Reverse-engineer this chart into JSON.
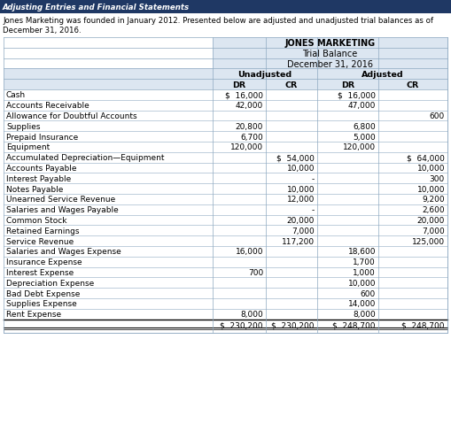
{
  "header_title": "Adjusting Entries and Financial Statements",
  "intro_text": "Jones Marketing was founded in January 2012. Presented below are adjusted and unadjusted trial balances as of December 31, 2016.",
  "company": "JONES MARKETING",
  "report": "Trial Balance",
  "date": "December 31, 2016",
  "rows": [
    {
      "label": "Cash",
      "unadj_dr": "$  16,000",
      "unadj_cr": "",
      "adj_dr": "$  16,000",
      "adj_cr": ""
    },
    {
      "label": "Accounts Receivable",
      "unadj_dr": "42,000",
      "unadj_cr": "",
      "adj_dr": "47,000",
      "adj_cr": ""
    },
    {
      "label": "Allowance for Doubtful Accounts",
      "unadj_dr": "",
      "unadj_cr": "",
      "adj_dr": "",
      "adj_cr": "600"
    },
    {
      "label": "Supplies",
      "unadj_dr": "20,800",
      "unadj_cr": "",
      "adj_dr": "6,800",
      "adj_cr": ""
    },
    {
      "label": "Prepaid Insurance",
      "unadj_dr": "6,700",
      "unadj_cr": "",
      "adj_dr": "5,000",
      "adj_cr": ""
    },
    {
      "label": "Equipment",
      "unadj_dr": "120,000",
      "unadj_cr": "",
      "adj_dr": "120,000",
      "adj_cr": ""
    },
    {
      "label": "Accumulated Depreciation—Equipment",
      "unadj_dr": "",
      "unadj_cr": "$  54,000",
      "adj_dr": "",
      "adj_cr": "$  64,000"
    },
    {
      "label": "Accounts Payable",
      "unadj_dr": "",
      "unadj_cr": "10,000",
      "adj_dr": "",
      "adj_cr": "10,000"
    },
    {
      "label": "Interest Payable",
      "unadj_dr": "",
      "unadj_cr": "-",
      "adj_dr": "",
      "adj_cr": "300"
    },
    {
      "label": "Notes Payable",
      "unadj_dr": "",
      "unadj_cr": "10,000",
      "adj_dr": "",
      "adj_cr": "10,000"
    },
    {
      "label": "Unearned Service Revenue",
      "unadj_dr": "",
      "unadj_cr": "12,000",
      "adj_dr": "",
      "adj_cr": "9,200"
    },
    {
      "label": "Salaries and Wages Payable",
      "unadj_dr": "",
      "unadj_cr": "-",
      "adj_dr": "",
      "adj_cr": "2,600"
    },
    {
      "label": "Common Stock",
      "unadj_dr": "",
      "unadj_cr": "20,000",
      "adj_dr": "",
      "adj_cr": "20,000"
    },
    {
      "label": "Retained Earnings",
      "unadj_dr": "",
      "unadj_cr": "7,000",
      "adj_dr": "",
      "adj_cr": "7,000"
    },
    {
      "label": "Service Revenue",
      "unadj_dr": "",
      "unadj_cr": "117,200",
      "adj_dr": "",
      "adj_cr": "125,000"
    },
    {
      "label": "Salaries and Wages Expense",
      "unadj_dr": "16,000",
      "unadj_cr": "",
      "adj_dr": "18,600",
      "adj_cr": ""
    },
    {
      "label": "Insurance Expense",
      "unadj_dr": "",
      "unadj_cr": "",
      "adj_dr": "1,700",
      "adj_cr": ""
    },
    {
      "label": "Interest Expense",
      "unadj_dr": "700",
      "unadj_cr": "",
      "adj_dr": "1,000",
      "adj_cr": ""
    },
    {
      "label": "Depreciation Expense",
      "unadj_dr": "",
      "unadj_cr": "",
      "adj_dr": "10,000",
      "adj_cr": ""
    },
    {
      "label": "Bad Debt Expense",
      "unadj_dr": "",
      "unadj_cr": "",
      "adj_dr": "600",
      "adj_cr": ""
    },
    {
      "label": "Supplies Expense",
      "unadj_dr": "",
      "unadj_cr": "",
      "adj_dr": "14,000",
      "adj_cr": ""
    },
    {
      "label": "Rent Expense",
      "unadj_dr": "8,000",
      "unadj_cr": "",
      "adj_dr": "8,000",
      "adj_cr": ""
    }
  ],
  "totals": {
    "unadj_dr": "$  230,200",
    "unadj_cr": "$  230,200",
    "adj_dr": "$  248,700",
    "adj_cr": "$  248,700"
  },
  "header_bg": "#1f3864",
  "header_text_color": "#ffffff",
  "table_header_bg": "#dce6f1",
  "border_color": "#8ea9c1",
  "text_color": "#000000"
}
